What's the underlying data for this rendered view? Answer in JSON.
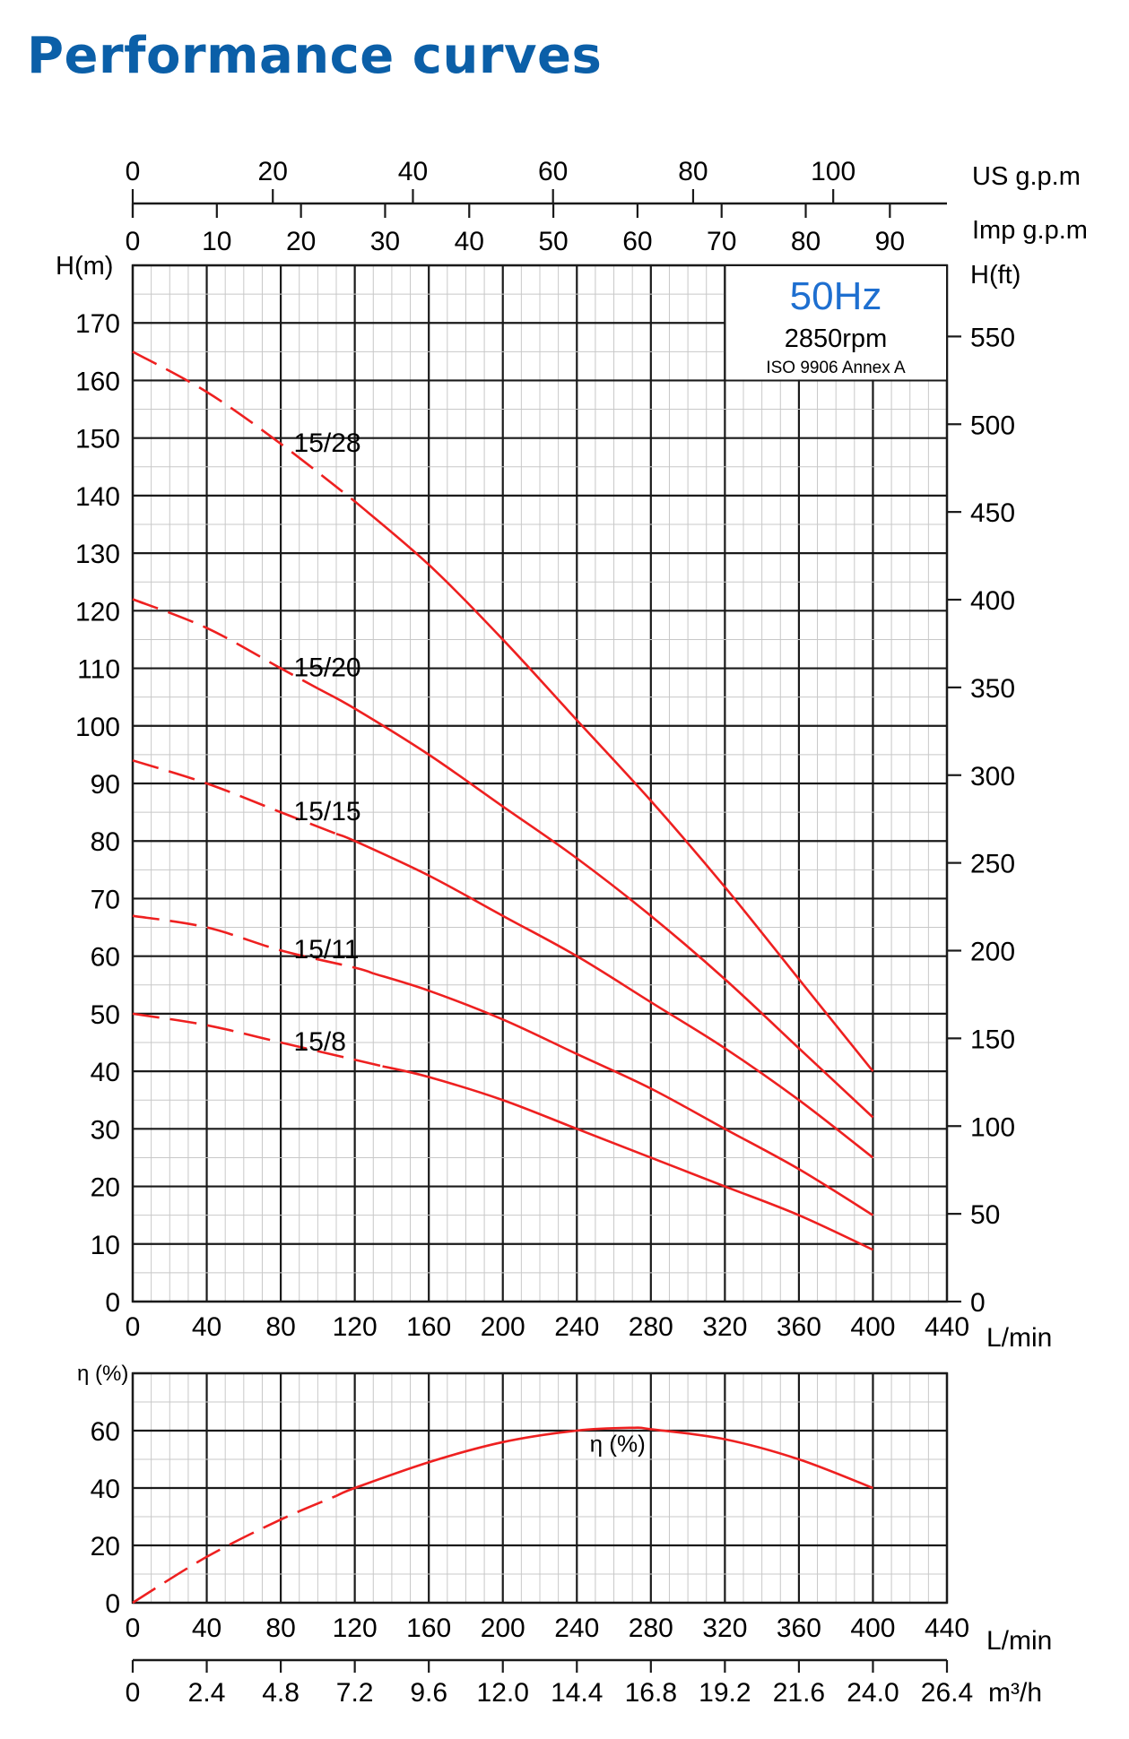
{
  "page": {
    "title": "Performance curves"
  },
  "chart_data": {
    "type": "line",
    "frequency": "50Hz",
    "speed": "2850rpm",
    "standard": "ISO 9906 Annex A",
    "head_chart": {
      "ylabel_left": "H(m)",
      "ylabel_right": "H(ft)",
      "xlabel": "L/min",
      "x_range": [
        0,
        440
      ],
      "y_range": [
        0,
        180
      ],
      "x_ticks": [
        0,
        40,
        80,
        120,
        160,
        200,
        240,
        280,
        320,
        360,
        400,
        440
      ],
      "y_ticks": [
        0,
        10,
        20,
        30,
        40,
        50,
        60,
        70,
        80,
        90,
        100,
        110,
        120,
        130,
        140,
        150,
        160,
        170
      ],
      "ft_ticks": [
        0,
        50,
        100,
        150,
        200,
        250,
        300,
        350,
        400,
        450,
        500,
        550
      ],
      "grid": true,
      "series": [
        {
          "name": "15/28",
          "x": [
            0,
            40,
            80,
            120,
            160,
            200,
            240,
            280,
            320,
            360,
            400
          ],
          "y": [
            165,
            158,
            149,
            139,
            128,
            115,
            101,
            87,
            72,
            56,
            40
          ]
        },
        {
          "name": "15/20",
          "x": [
            0,
            40,
            80,
            120,
            160,
            200,
            240,
            280,
            320,
            360,
            400
          ],
          "y": [
            122,
            117,
            110,
            103,
            95,
            86,
            77,
            67,
            56,
            44,
            32
          ]
        },
        {
          "name": "15/15",
          "x": [
            0,
            40,
            80,
            120,
            160,
            200,
            240,
            280,
            320,
            360,
            400
          ],
          "y": [
            94,
            90,
            85,
            80,
            74,
            67,
            60,
            52,
            44,
            35,
            25
          ]
        },
        {
          "name": "15/11",
          "x": [
            0,
            40,
            80,
            120,
            160,
            200,
            240,
            280,
            320,
            360,
            400
          ],
          "y": [
            67,
            65,
            61,
            58,
            54,
            49,
            43,
            37,
            30,
            23,
            15
          ]
        },
        {
          "name": "15/8",
          "x": [
            0,
            40,
            80,
            120,
            160,
            200,
            240,
            280,
            320,
            360,
            400
          ],
          "y": [
            50,
            48,
            45,
            42,
            39,
            35,
            30,
            25,
            20,
            15,
            9
          ]
        }
      ],
      "dashed_until_x": [
        120,
        100,
        110,
        130,
        135
      ]
    },
    "flow_scales": {
      "usgpm": {
        "label": "US g.p.m",
        "ticks": [
          0,
          20,
          40,
          60,
          80,
          100
        ]
      },
      "impgpm": {
        "label": "Imp g.p.m",
        "ticks": [
          0,
          10,
          20,
          30,
          40,
          50,
          60,
          70,
          80,
          90
        ]
      },
      "m3h": {
        "label": "m³/h",
        "ticks": [
          "0",
          "2.4",
          "4.8",
          "7.2",
          "9.6",
          "12.0",
          "14.4",
          "16.8",
          "19.2",
          "21.6",
          "24.0",
          "26.4"
        ]
      }
    },
    "efficiency_chart": {
      "ylabel": "η (%)",
      "xlabel": "L/min",
      "x_range": [
        0,
        440
      ],
      "y_range": [
        0,
        80
      ],
      "x_ticks": [
        0,
        40,
        80,
        120,
        160,
        200,
        240,
        280,
        320,
        360,
        400,
        440
      ],
      "y_ticks": [
        0,
        20,
        40,
        60
      ],
      "grid": true,
      "series": [
        {
          "name": "η (%)",
          "x": [
            0,
            40,
            80,
            120,
            160,
            200,
            240,
            270,
            280,
            320,
            360,
            400
          ],
          "y": [
            0,
            16,
            29,
            40,
            49,
            56,
            60,
            61,
            60.5,
            57,
            50,
            40
          ]
        }
      ],
      "dashed_until_x": 110
    }
  }
}
